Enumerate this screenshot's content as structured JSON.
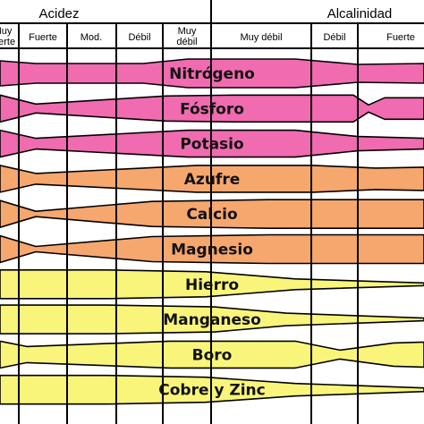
{
  "header": {
    "groups": [
      {
        "key": "acidez",
        "label": "Acidez"
      },
      {
        "key": "alcalinidad",
        "label": "Alcalinidad"
      }
    ],
    "columns": [
      {
        "lines": [
          "Muy",
          "fuerte"
        ]
      },
      {
        "lines": [
          "Fuerte"
        ]
      },
      {
        "lines": [
          "Mod."
        ]
      },
      {
        "lines": [
          "Débil"
        ]
      },
      {
        "lines": [
          "Muy",
          "débil"
        ]
      },
      {
        "lines": [
          "Muy débil"
        ]
      },
      {
        "lines": [
          "Débil"
        ]
      },
      {
        "lines": [
          "Fuerte"
        ]
      }
    ]
  },
  "colors": {
    "pink": "#f06bb0",
    "orange": "#f6a76e",
    "yellow": "#f9f57a",
    "grid": "#000000"
  },
  "nutrients": [
    {
      "name": "Nitrógeno",
      "color": "pink",
      "profile": "N"
    },
    {
      "name": "Fósforo",
      "color": "pink",
      "profile": "P"
    },
    {
      "name": "Potasio",
      "color": "pink",
      "profile": "K"
    },
    {
      "name": "Azufre",
      "color": "orange",
      "profile": "S"
    },
    {
      "name": "Calcio",
      "color": "orange",
      "profile": "Ca"
    },
    {
      "name": "Magnesio",
      "color": "orange",
      "profile": "Mg"
    },
    {
      "name": "Hierro",
      "color": "yellow",
      "profile": "Fe"
    },
    {
      "name": "Manganeso",
      "color": "yellow",
      "profile": "Mn"
    },
    {
      "name": "Boro",
      "color": "yellow",
      "profile": "B"
    },
    {
      "name": "Cobre y Zinc",
      "color": "yellow",
      "profile": "CuZn"
    }
  ]
}
